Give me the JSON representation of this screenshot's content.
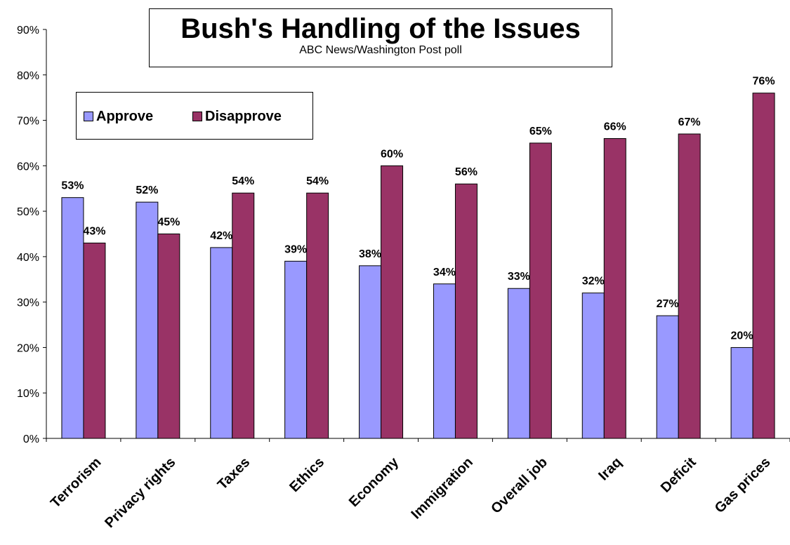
{
  "title": "Bush's Handling of the Issues",
  "subtitle": "ABC News/Washington Post poll",
  "colors": {
    "approve": "#9999ff",
    "disapprove": "#993366"
  },
  "chart_data": {
    "type": "bar",
    "categories": [
      "Terrorism",
      "Privacy rights",
      "Taxes",
      "Ethics",
      "Economy",
      "Immigration",
      "Overall job",
      "Iraq",
      "Deficit",
      "Gas prices"
    ],
    "series": [
      {
        "name": "Approve",
        "values": [
          53,
          52,
          42,
          39,
          38,
          34,
          33,
          32,
          27,
          20
        ]
      },
      {
        "name": "Disapprove",
        "values": [
          43,
          45,
          54,
          54,
          60,
          56,
          65,
          66,
          67,
          76
        ]
      }
    ],
    "ylim": [
      0,
      90
    ],
    "yticks": [
      "0%",
      "10%",
      "20%",
      "30%",
      "40%",
      "50%",
      "60%",
      "70%",
      "80%",
      "90%"
    ],
    "data_labels": {
      "Approve": [
        "53%",
        "52%",
        "42%",
        "39%",
        "38%",
        "34%",
        "33%",
        "32%",
        "27%",
        "20%"
      ],
      "Disapprove": [
        "43%",
        "45%",
        "54%",
        "54%",
        "60%",
        "56%",
        "65%",
        "66%",
        "67%",
        "76%"
      ]
    },
    "grid": false,
    "legend_position": "top-left"
  }
}
